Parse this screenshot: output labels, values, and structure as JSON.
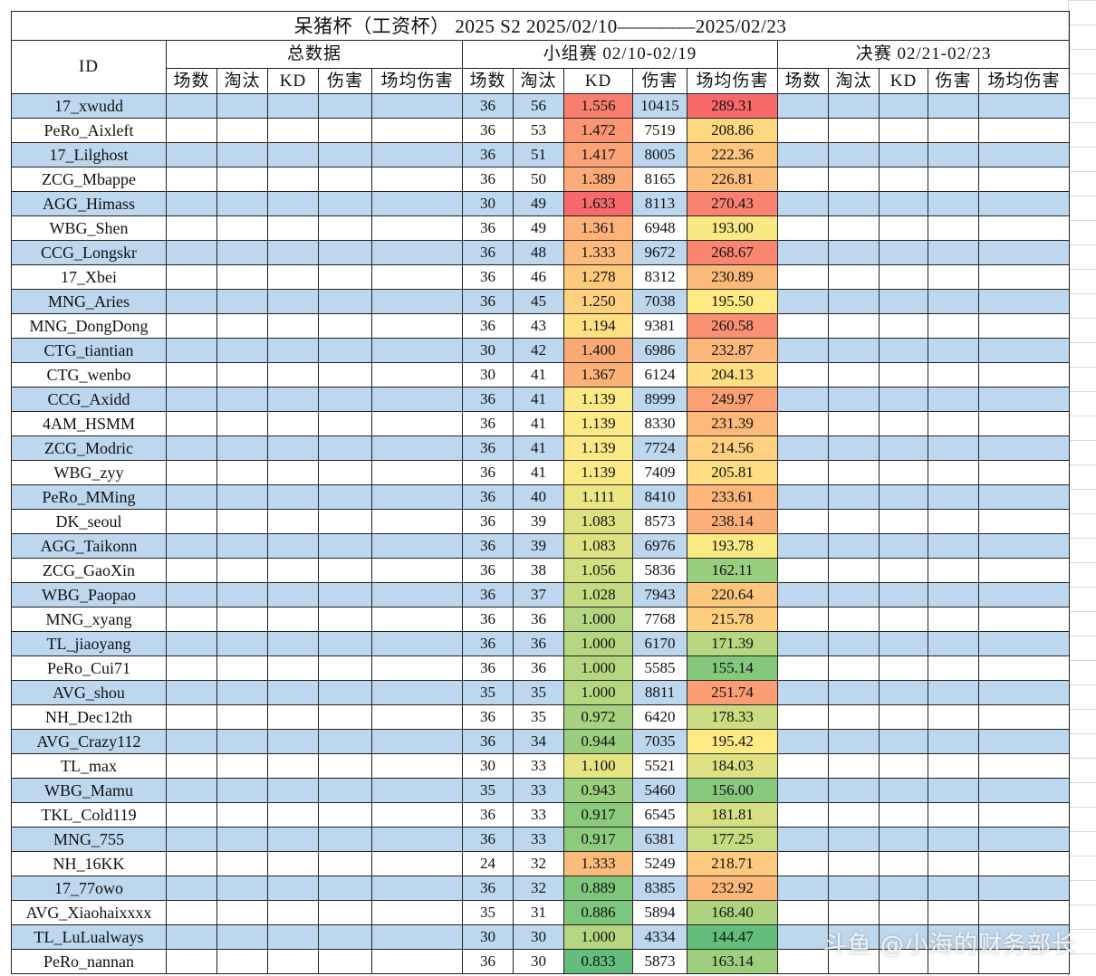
{
  "title": "呆猪杯（工资杯） 2025 S2  2025/02/10————2025/02/23",
  "header": {
    "id_label": "ID",
    "groups": [
      "总数据",
      "小组赛 02/10-02/19",
      "决赛 02/21-02/23"
    ],
    "columns": [
      "场数",
      "淘汰",
      "KD",
      "伤害",
      "场均伤害"
    ]
  },
  "colors": {
    "stripe_blue": "#bdd7ee",
    "kd_high": "#f8696b",
    "kd_mid": "#ffeb84",
    "kd_low": "#63be7b"
  },
  "rows": [
    {
      "id": "17_xwudd",
      "games": "36",
      "elims": "56",
      "kd": "1.556",
      "dmg": "10415",
      "avg": "289.31"
    },
    {
      "id": "PeRo_Aixleft",
      "games": "36",
      "elims": "53",
      "kd": "1.472",
      "dmg": "7519",
      "avg": "208.86"
    },
    {
      "id": "17_Lilghost",
      "games": "36",
      "elims": "51",
      "kd": "1.417",
      "dmg": "8005",
      "avg": "222.36"
    },
    {
      "id": "ZCG_Mbappe",
      "games": "36",
      "elims": "50",
      "kd": "1.389",
      "dmg": "8165",
      "avg": "226.81"
    },
    {
      "id": "AGG_Himass",
      "games": "30",
      "elims": "49",
      "kd": "1.633",
      "dmg": "8113",
      "avg": "270.43"
    },
    {
      "id": "WBG_Shen",
      "games": "36",
      "elims": "49",
      "kd": "1.361",
      "dmg": "6948",
      "avg": "193.00"
    },
    {
      "id": "CCG_Longskr",
      "games": "36",
      "elims": "48",
      "kd": "1.333",
      "dmg": "9672",
      "avg": "268.67"
    },
    {
      "id": "17_Xbei",
      "games": "36",
      "elims": "46",
      "kd": "1.278",
      "dmg": "8312",
      "avg": "230.89"
    },
    {
      "id": "MNG_Aries",
      "games": "36",
      "elims": "45",
      "kd": "1.250",
      "dmg": "7038",
      "avg": "195.50"
    },
    {
      "id": "MNG_DongDong",
      "games": "36",
      "elims": "43",
      "kd": "1.194",
      "dmg": "9381",
      "avg": "260.58"
    },
    {
      "id": "CTG_tiantian",
      "games": "30",
      "elims": "42",
      "kd": "1.400",
      "dmg": "6986",
      "avg": "232.87"
    },
    {
      "id": "CTG_wenbo",
      "games": "30",
      "elims": "41",
      "kd": "1.367",
      "dmg": "6124",
      "avg": "204.13"
    },
    {
      "id": "CCG_Axidd",
      "games": "36",
      "elims": "41",
      "kd": "1.139",
      "dmg": "8999",
      "avg": "249.97"
    },
    {
      "id": "4AM_HSMM",
      "games": "36",
      "elims": "41",
      "kd": "1.139",
      "dmg": "8330",
      "avg": "231.39"
    },
    {
      "id": "ZCG_Modric",
      "games": "36",
      "elims": "41",
      "kd": "1.139",
      "dmg": "7724",
      "avg": "214.56"
    },
    {
      "id": "WBG_zyy",
      "games": "36",
      "elims": "41",
      "kd": "1.139",
      "dmg": "7409",
      "avg": "205.81"
    },
    {
      "id": "PeRo_MMing",
      "games": "36",
      "elims": "40",
      "kd": "1.111",
      "dmg": "8410",
      "avg": "233.61"
    },
    {
      "id": "DK_seoul",
      "games": "36",
      "elims": "39",
      "kd": "1.083",
      "dmg": "8573",
      "avg": "238.14"
    },
    {
      "id": "AGG_Taikonn",
      "games": "36",
      "elims": "39",
      "kd": "1.083",
      "dmg": "6976",
      "avg": "193.78"
    },
    {
      "id": "ZCG_GaoXin",
      "games": "36",
      "elims": "38",
      "kd": "1.056",
      "dmg": "5836",
      "avg": "162.11"
    },
    {
      "id": "WBG_Paopao",
      "games": "36",
      "elims": "37",
      "kd": "1.028",
      "dmg": "7943",
      "avg": "220.64"
    },
    {
      "id": "MNG_xyang",
      "games": "36",
      "elims": "36",
      "kd": "1.000",
      "dmg": "7768",
      "avg": "215.78"
    },
    {
      "id": "TL_jiaoyang",
      "games": "36",
      "elims": "36",
      "kd": "1.000",
      "dmg": "6170",
      "avg": "171.39"
    },
    {
      "id": "PeRo_Cui71",
      "games": "36",
      "elims": "36",
      "kd": "1.000",
      "dmg": "5585",
      "avg": "155.14"
    },
    {
      "id": "AVG_shou",
      "games": "35",
      "elims": "35",
      "kd": "1.000",
      "dmg": "8811",
      "avg": "251.74"
    },
    {
      "id": "NH_Dec12th",
      "games": "36",
      "elims": "35",
      "kd": "0.972",
      "dmg": "6420",
      "avg": "178.33"
    },
    {
      "id": "AVG_Crazy112",
      "games": "36",
      "elims": "34",
      "kd": "0.944",
      "dmg": "7035",
      "avg": "195.42"
    },
    {
      "id": "TL_max",
      "games": "30",
      "elims": "33",
      "kd": "1.100",
      "dmg": "5521",
      "avg": "184.03"
    },
    {
      "id": "WBG_Mamu",
      "games": "35",
      "elims": "33",
      "kd": "0.943",
      "dmg": "5460",
      "avg": "156.00"
    },
    {
      "id": "TKL_Cold119",
      "games": "36",
      "elims": "33",
      "kd": "0.917",
      "dmg": "6545",
      "avg": "181.81"
    },
    {
      "id": "MNG_755",
      "games": "36",
      "elims": "33",
      "kd": "0.917",
      "dmg": "6381",
      "avg": "177.25"
    },
    {
      "id": "NH_16KK",
      "games": "24",
      "elims": "32",
      "kd": "1.333",
      "dmg": "5249",
      "avg": "218.71"
    },
    {
      "id": "17_77owo",
      "games": "36",
      "elims": "32",
      "kd": "0.889",
      "dmg": "8385",
      "avg": "232.92"
    },
    {
      "id": "AVG_Xiaohaixxxx",
      "games": "35",
      "elims": "31",
      "kd": "0.886",
      "dmg": "5894",
      "avg": "168.40"
    },
    {
      "id": "TL_LuLualways",
      "games": "30",
      "elims": "30",
      "kd": "1.000",
      "dmg": "4334",
      "avg": "144.47"
    },
    {
      "id": "PeRo_nannan",
      "games": "36",
      "elims": "30",
      "kd": "0.833",
      "dmg": "5873",
      "avg": "163.14"
    }
  ],
  "watermark": "斗鱼 @小海的财务部长"
}
